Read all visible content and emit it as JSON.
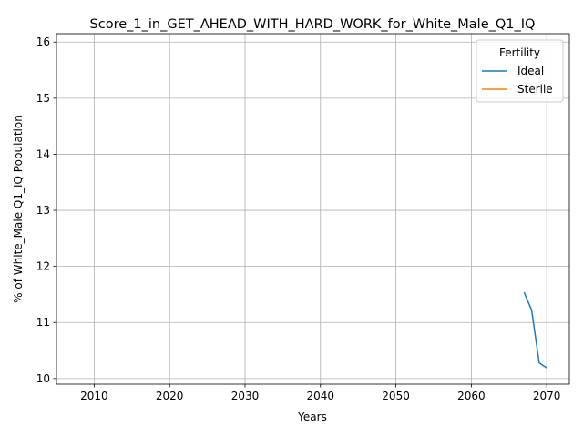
{
  "chart_data": {
    "type": "line",
    "title": "Score_1_in_GET_AHEAD_WITH_HARD_WORK_for_White_Male_Q1_IQ",
    "xlabel": "Years",
    "ylabel": "% of White_Male Q1_IQ Population",
    "xlim": [
      2005,
      2073
    ],
    "ylim": [
      9.9,
      16.15
    ],
    "xticks": [
      2010,
      2020,
      2030,
      2040,
      2050,
      2060,
      2070
    ],
    "yticks": [
      10,
      11,
      12,
      13,
      14,
      15,
      16
    ],
    "grid": true,
    "legend": {
      "title": "Fertility",
      "placement": "top-right",
      "entries": [
        "Ideal",
        "Sterile"
      ]
    },
    "series": [
      {
        "name": "Ideal",
        "color": "#1f77b4",
        "x": [
          2067,
          2068,
          2069,
          2070
        ],
        "values": [
          11.54,
          11.22,
          10.28,
          10.19
        ]
      },
      {
        "name": "Sterile",
        "color": "#ff7f0e",
        "x": [],
        "values": []
      }
    ]
  }
}
